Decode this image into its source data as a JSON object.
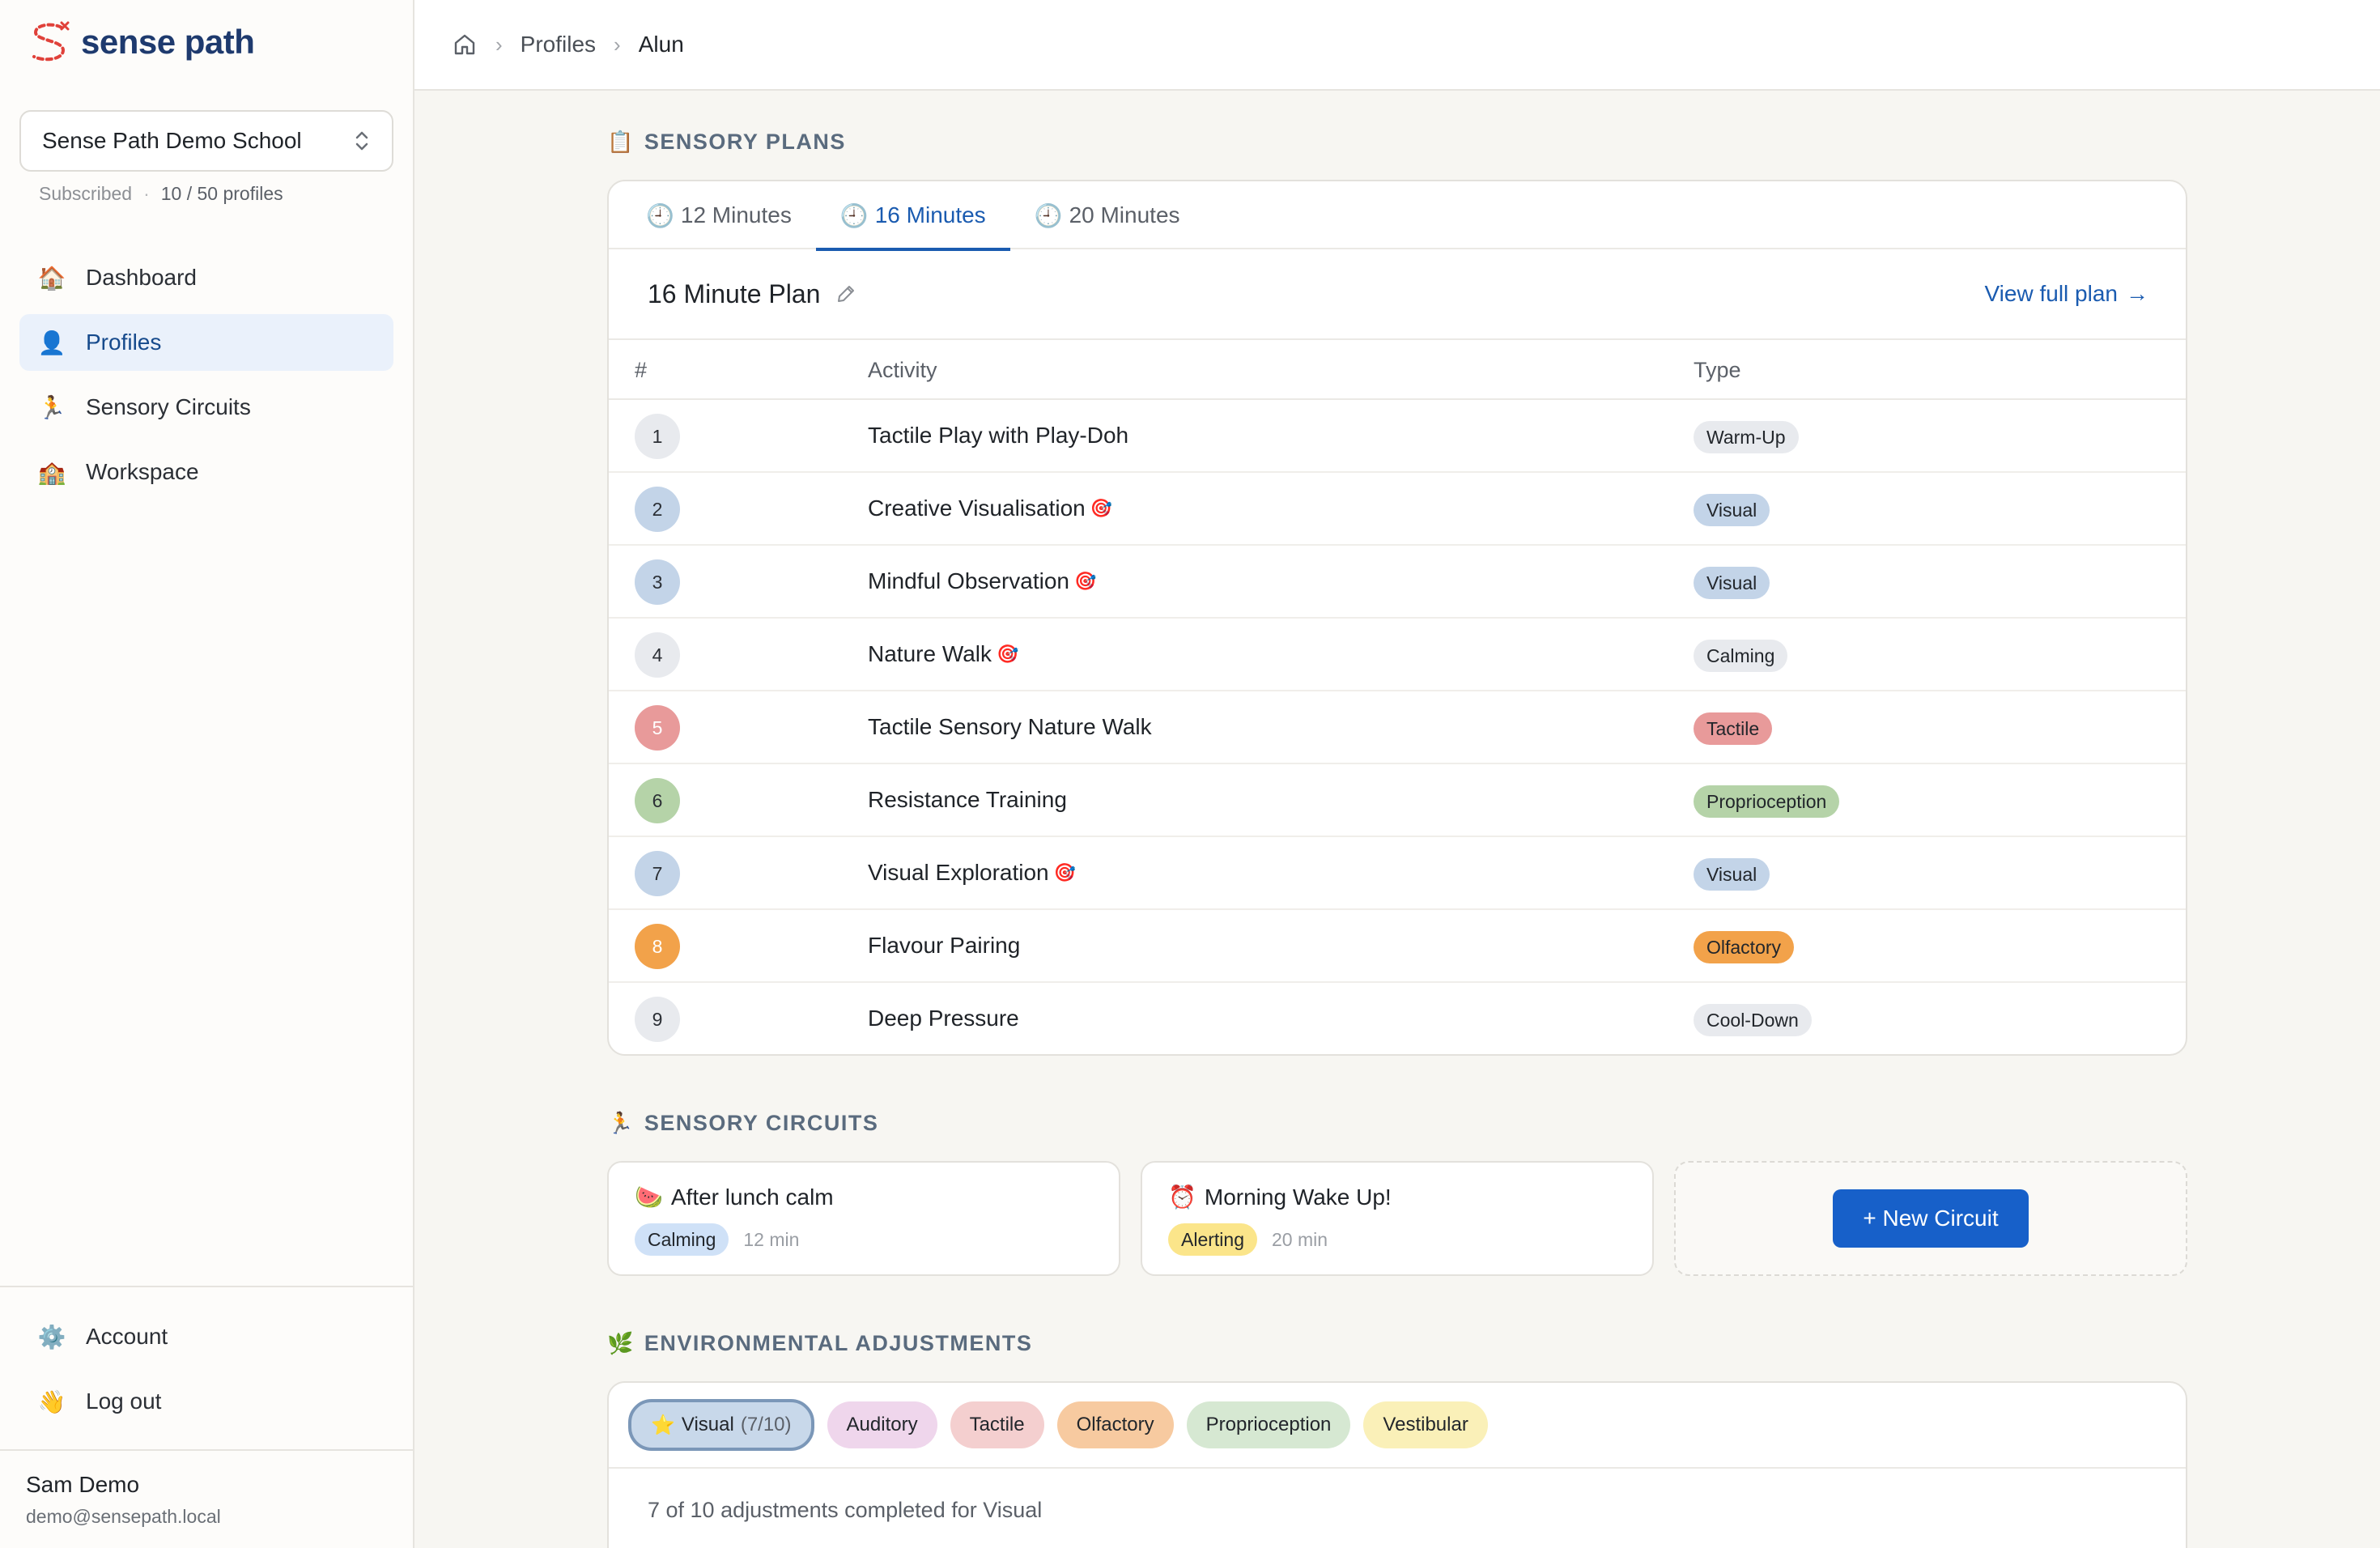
{
  "app": {
    "logo_text": "sense path"
  },
  "school": {
    "name": "Sense Path Demo School",
    "status": "Subscribed",
    "profiles": "10 / 50 profiles"
  },
  "nav": {
    "items": [
      {
        "label": "Dashboard",
        "icon": "house-icon",
        "emoji": "🏠"
      },
      {
        "label": "Profiles",
        "icon": "person-icon",
        "emoji": "👤"
      },
      {
        "label": "Sensory Circuits",
        "icon": "runner-icon",
        "emoji": "🏃"
      },
      {
        "label": "Workspace",
        "icon": "school-icon",
        "emoji": "🏫"
      }
    ],
    "bottom": [
      {
        "label": "Account",
        "icon": "gear-icon",
        "emoji": "⚙️"
      },
      {
        "label": "Log out",
        "icon": "wave-icon",
        "emoji": "👋"
      }
    ]
  },
  "user": {
    "name": "Sam Demo",
    "email": "demo@sensepath.local"
  },
  "breadcrumb": {
    "items": [
      "Profiles",
      "Alun"
    ]
  },
  "sensory_plans": {
    "heading": "SENSORY PLANS",
    "emoji": "📋",
    "tabs": [
      {
        "label": "12 Minutes"
      },
      {
        "label": "16 Minutes"
      },
      {
        "label": "20 Minutes"
      }
    ],
    "plan_title": "16 Minute Plan",
    "view_link": "View full plan",
    "columns": {
      "num": "#",
      "activity": "Activity",
      "type": "Type"
    },
    "rows": [
      {
        "num": "1",
        "activity": "Tactile Play with Play-Doh",
        "target": false,
        "type": "Warm-Up"
      },
      {
        "num": "2",
        "activity": "Creative Visualisation",
        "target": true,
        "type": "Visual"
      },
      {
        "num": "3",
        "activity": "Mindful Observation",
        "target": true,
        "type": "Visual"
      },
      {
        "num": "4",
        "activity": "Nature Walk",
        "target": true,
        "type": "Calming"
      },
      {
        "num": "5",
        "activity": "Tactile Sensory Nature Walk",
        "target": false,
        "type": "Tactile"
      },
      {
        "num": "6",
        "activity": "Resistance Training",
        "target": false,
        "type": "Proprioception"
      },
      {
        "num": "7",
        "activity": "Visual Exploration",
        "target": true,
        "type": "Visual"
      },
      {
        "num": "8",
        "activity": "Flavour Pairing",
        "target": false,
        "type": "Olfactory"
      },
      {
        "num": "9",
        "activity": "Deep Pressure",
        "target": false,
        "type": "Cool-Down"
      }
    ],
    "type_colors": {
      "Warm-Up": "#e8eaee",
      "Visual": "#c3d4e8",
      "Calming": "#e8eaee",
      "Tactile": "#e89a9a",
      "Proprioception": "#b5d3a8",
      "Olfactory": "#f2a24a",
      "Cool-Down": "#e8eaee"
    }
  },
  "sensory_circuits": {
    "heading": "SENSORY CIRCUITS",
    "emoji": "🏃",
    "items": [
      {
        "emoji": "🍉",
        "title": "After lunch calm",
        "tag": "Calming",
        "tag_color": "#cfe1f7",
        "duration": "12 min"
      },
      {
        "emoji": "⏰",
        "title": "Morning Wake Up!",
        "tag": "Alerting",
        "tag_color": "#fbe58a",
        "duration": "20 min"
      }
    ],
    "new_button": "+ New Circuit"
  },
  "environmental": {
    "heading": "ENVIRONMENTAL ADJUSTMENTS",
    "emoji": "🌿",
    "chips": [
      {
        "label": "Visual",
        "count": "(7/10)",
        "star": "⭐",
        "color": "#c8d8ea",
        "active": true
      },
      {
        "label": "Auditory",
        "color": "#efd6ec"
      },
      {
        "label": "Tactile",
        "color": "#f4cfcf"
      },
      {
        "label": "Olfactory",
        "color": "#f7caa0"
      },
      {
        "label": "Proprioception",
        "color": "#d6e8d2"
      },
      {
        "label": "Vestibular",
        "color": "#faf0b8"
      }
    ],
    "summary": "7 of 10 adjustments completed for Visual"
  }
}
